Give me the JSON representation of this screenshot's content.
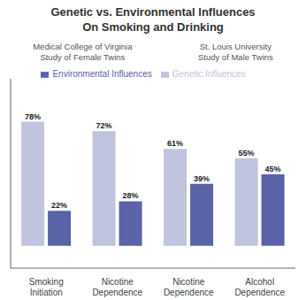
{
  "chart_data": {
    "type": "bar",
    "title": "Genetic vs. Environmental Influences\nOn Smoking and Drinking",
    "annotations": [
      "Medical College of Virginia\nStudy of Female Twins",
      "St. Louis University\nStudy of Male Twins"
    ],
    "categories": [
      "Smoking\nInitiation",
      "Nicotine\nDependence",
      "Nicotine\nDependence",
      "Alcohol\nDependence"
    ],
    "series": [
      {
        "name": "Genetic Influences",
        "color": "#c0c4de",
        "values": [
          78,
          72,
          61,
          55
        ],
        "value_labels": [
          "78%",
          "72%",
          "61%",
          "55%"
        ]
      },
      {
        "name": "Environmental Influences",
        "color": "#5a62a8",
        "values": [
          22,
          28,
          39,
          45
        ],
        "value_labels": [
          "22%",
          "28%",
          "39%",
          "45%"
        ]
      }
    ],
    "ylim": [
      -14,
      105
    ],
    "tick_labels": "x",
    "data_labels": true,
    "legend": "top",
    "grid": false
  }
}
